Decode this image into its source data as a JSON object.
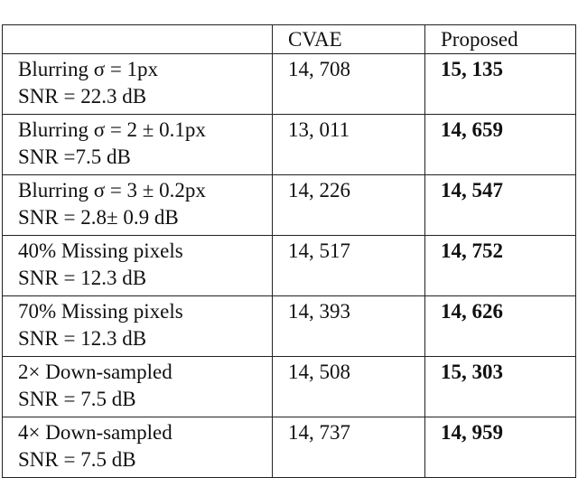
{
  "table": {
    "headers": [
      "",
      "CVAE",
      "Proposed"
    ],
    "rows": [
      {
        "condition": "Blurring σ = 1px",
        "snr": "SNR = 22.3 dB",
        "cvae": "14, 708",
        "proposed": "15, 135"
      },
      {
        "condition": "Blurring σ = 2 ± 0.1px",
        "snr": "SNR =7.5 dB",
        "cvae": "13, 011",
        "proposed": "14, 659"
      },
      {
        "condition": "Blurring σ = 3 ± 0.2px",
        "snr": "SNR = 2.8± 0.9 dB",
        "cvae": "14, 226",
        "proposed": "14, 547"
      },
      {
        "condition": "40% Missing pixels",
        "snr": "SNR = 12.3 dB",
        "cvae": "14, 517",
        "proposed": "14, 752"
      },
      {
        "condition": "70% Missing pixels",
        "snr": "SNR = 12.3 dB",
        "cvae": "14, 393",
        "proposed": "14, 626"
      },
      {
        "condition": "2× Down-sampled",
        "snr": "SNR = 7.5 dB",
        "cvae": "14, 508",
        "proposed": "15, 303"
      },
      {
        "condition": "4× Down-sampled",
        "snr": "SNR = 7.5 dB",
        "cvae": "14, 737",
        "proposed": "14, 959"
      }
    ]
  }
}
